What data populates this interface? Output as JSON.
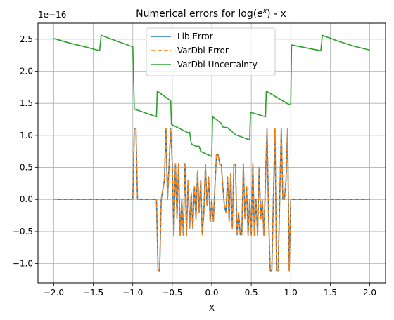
{
  "chart_data": {
    "type": "line",
    "title": "Numerical errors for log(e^x) - x",
    "title_parts": {
      "prefix": "Numerical errors for log(",
      "base": "e",
      "exponent": "x",
      "suffix": ") - x"
    },
    "xlabel": "X",
    "ylabel": "",
    "y_offset_label": "1e−16",
    "xlim": [
      -2.2,
      2.2
    ],
    "ylim": [
      -1.3,
      2.75
    ],
    "x_ticks": [
      -2.0,
      -1.5,
      -1.0,
      -0.5,
      0.0,
      0.5,
      1.0,
      1.5,
      2.0
    ],
    "x_tick_labels": [
      "−2.0",
      "−1.5",
      "−1.0",
      "−0.5",
      "0.0",
      "0.5",
      "1.0",
      "1.5",
      "2.0"
    ],
    "y_ticks": [
      -1.0,
      -0.5,
      0.0,
      0.5,
      1.0,
      1.5,
      2.0,
      2.5
    ],
    "y_tick_labels": [
      "−1.0",
      "−0.5",
      "0.0",
      "0.5",
      "1.0",
      "1.5",
      "2.0",
      "2.5"
    ],
    "grid": true,
    "legend_position": "top-center",
    "series": [
      {
        "name": "Lib Error",
        "color": "#1f77b4",
        "style": "solid",
        "points": [
          [
            -2.0,
            0
          ],
          [
            -1.0,
            0
          ],
          [
            -0.98,
            1.11
          ],
          [
            -0.96,
            1.11
          ],
          [
            -0.94,
            0
          ],
          [
            -0.7,
            0
          ],
          [
            -0.68,
            -1.11
          ],
          [
            -0.66,
            -1.11
          ],
          [
            -0.64,
            0
          ],
          [
            -0.6,
            0.3
          ],
          [
            -0.58,
            1.11
          ],
          [
            -0.56,
            0
          ],
          [
            -0.54,
            0.56
          ],
          [
            -0.52,
            1.11
          ],
          [
            -0.5,
            0.56
          ],
          [
            -0.48,
            -0.56
          ],
          [
            -0.46,
            0.56
          ],
          [
            -0.44,
            -0.3
          ],
          [
            -0.42,
            0.56
          ],
          [
            -0.4,
            -0.56
          ],
          [
            -0.38,
            0
          ],
          [
            -0.36,
            -0.56
          ],
          [
            -0.34,
            0.56
          ],
          [
            -0.32,
            -0.56
          ],
          [
            -0.3,
            0.3
          ],
          [
            -0.28,
            -0.45
          ],
          [
            -0.26,
            0.1
          ],
          [
            -0.24,
            -0.45
          ],
          [
            -0.22,
            0.2
          ],
          [
            -0.2,
            -0.3
          ],
          [
            -0.18,
            0.45
          ],
          [
            -0.16,
            -0.2
          ],
          [
            -0.14,
            0.3
          ],
          [
            -0.12,
            -0.55
          ],
          [
            -0.1,
            -0.2
          ],
          [
            -0.08,
            0.55
          ],
          [
            -0.06,
            -0.1
          ],
          [
            -0.04,
            0.35
          ],
          [
            -0.02,
            -0.35
          ],
          [
            0.0,
            0.0
          ],
          [
            0.02,
            -0.35
          ],
          [
            0.04,
            0.2
          ],
          [
            0.06,
            0.7
          ],
          [
            0.08,
            0.7
          ],
          [
            0.1,
            0.55
          ],
          [
            0.12,
            0.55
          ],
          [
            0.14,
            0.2
          ],
          [
            0.16,
            -0.1
          ],
          [
            0.18,
            -0.2
          ],
          [
            0.2,
            0.35
          ],
          [
            0.22,
            -0.35
          ],
          [
            0.24,
            0.4
          ],
          [
            0.26,
            -0.45
          ],
          [
            0.28,
            0.55
          ],
          [
            0.3,
            0.55
          ],
          [
            0.32,
            -0.55
          ],
          [
            0.34,
            -0.2
          ],
          [
            0.36,
            -0.55
          ],
          [
            0.38,
            -0.55
          ],
          [
            0.4,
            0.56
          ],
          [
            0.42,
            -0.3
          ],
          [
            0.44,
            0.2
          ],
          [
            0.46,
            -0.56
          ],
          [
            0.48,
            0
          ],
          [
            0.5,
            -0.56
          ],
          [
            0.52,
            0.56
          ],
          [
            0.54,
            -0.56
          ],
          [
            0.56,
            0
          ],
          [
            0.58,
            -0.56
          ],
          [
            0.6,
            0.5
          ],
          [
            0.62,
            -0.3
          ],
          [
            0.64,
            0
          ],
          [
            0.66,
            -0.56
          ],
          [
            0.68,
            0.3
          ],
          [
            0.7,
            1.11
          ],
          [
            0.72,
            -0.3
          ],
          [
            0.74,
            -1.11
          ],
          [
            0.76,
            -1.11
          ],
          [
            0.78,
            0
          ],
          [
            0.8,
            1.11
          ],
          [
            0.82,
            -1.11
          ],
          [
            0.84,
            -1.11
          ],
          [
            0.86,
            0
          ],
          [
            0.88,
            1.11
          ],
          [
            0.9,
            0
          ],
          [
            0.92,
            0
          ],
          [
            0.94,
            0.3
          ],
          [
            0.96,
            1.11
          ],
          [
            0.98,
            -1.11
          ],
          [
            1.0,
            0
          ],
          [
            2.0,
            0
          ]
        ]
      },
      {
        "name": "VarDbl Error",
        "color": "#ff7f0e",
        "style": "dashed",
        "same_as": "Lib Error"
      },
      {
        "name": "VarDbl Uncertainty",
        "color": "#2ca02c",
        "style": "solid",
        "points": [
          [
            -2.0,
            2.51
          ],
          [
            -1.8,
            2.44
          ],
          [
            -1.6,
            2.38
          ],
          [
            -1.42,
            2.32
          ],
          [
            -1.4,
            2.56
          ],
          [
            -1.2,
            2.47
          ],
          [
            -1.02,
            2.39
          ],
          [
            -1.0,
            2.39
          ],
          [
            -0.98,
            1.41
          ],
          [
            -0.7,
            1.29
          ],
          [
            -0.69,
            1.69
          ],
          [
            -0.52,
            1.54
          ],
          [
            -0.51,
            1.17
          ],
          [
            -0.3,
            1.04
          ],
          [
            -0.28,
            1.05
          ],
          [
            -0.26,
            0.87
          ],
          [
            -0.2,
            0.83
          ],
          [
            -0.16,
            0.83
          ],
          [
            -0.14,
            0.75
          ],
          [
            0.0,
            0.67
          ],
          [
            0.01,
            1.29
          ],
          [
            0.12,
            1.19
          ],
          [
            0.14,
            1.13
          ],
          [
            0.2,
            1.12
          ],
          [
            0.3,
            1.01
          ],
          [
            0.48,
            0.93
          ],
          [
            0.49,
            1.36
          ],
          [
            0.68,
            1.29
          ],
          [
            0.69,
            1.69
          ],
          [
            0.98,
            1.48
          ],
          [
            1.0,
            1.48
          ],
          [
            1.01,
            2.41
          ],
          [
            1.38,
            2.32
          ],
          [
            1.4,
            2.56
          ],
          [
            1.6,
            2.47
          ],
          [
            1.8,
            2.39
          ],
          [
            2.0,
            2.33
          ]
        ]
      }
    ]
  }
}
